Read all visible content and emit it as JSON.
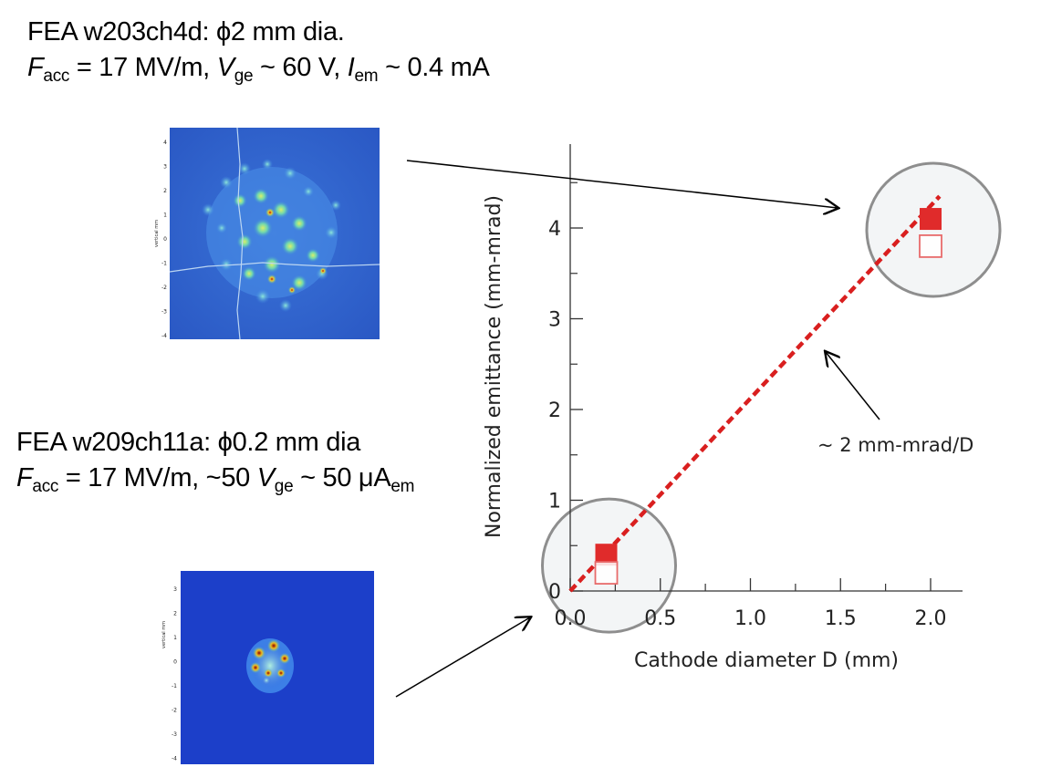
{
  "captions": {
    "top": {
      "line1": "FEA w203ch4d: ϕ2 mm dia.",
      "f": "F",
      "f_sub": "acc",
      "f_rest": " = 17 MV/m, ",
      "v": "V",
      "v_sub": "ge",
      "v_rest": " ~ 60 V, ",
      "i": "I",
      "i_sub": "em",
      "i_rest": " ~ 0.4 mA"
    },
    "bottom": {
      "line1": "FEA w209ch11a: ϕ0.2 mm dia",
      "f": "F",
      "f_sub": "acc",
      "f_rest": " = 17 MV/m, ~50 ",
      "v": "V",
      "v_sub": "ge",
      "v_rest": " ~ 50 μA",
      "a_sub": "em"
    }
  },
  "images": {
    "top": {
      "ylabel": "vertical mm",
      "ticks": [
        "4",
        "3",
        "2",
        "1",
        "0",
        "-1",
        "-2",
        "-3",
        "-4"
      ]
    },
    "bottom": {
      "ylabel": "vertical mm",
      "ticks": [
        "3",
        "2",
        "1",
        "0",
        "-1",
        "-2",
        "-3",
        "-4"
      ]
    }
  },
  "annotation": "~ 2 mm-mrad/D",
  "chart_data": {
    "type": "scatter",
    "xlabel": "Cathode diameter D (mm)",
    "ylabel": "Normalized emittance (mm-mrad)",
    "xlim": [
      0,
      2.2
    ],
    "ylim": [
      0,
      4.9
    ],
    "xticks": [
      0.0,
      0.5,
      1.0,
      1.5,
      2.0
    ],
    "xtick_labels": [
      "0.0",
      "0.5",
      "1.0",
      "1.5",
      "2.0"
    ],
    "yticks": [
      0,
      1,
      2,
      3,
      4
    ],
    "ytick_labels": [
      "0",
      "1",
      "2",
      "3",
      "4"
    ],
    "series": [
      {
        "marker": "filled-square",
        "color": "#e02b2b",
        "x": [
          0.2,
          2.0
        ],
        "y": [
          0.4,
          4.1
        ]
      },
      {
        "marker": "open-square",
        "color": "#e86b6b",
        "x": [
          0.2,
          2.0
        ],
        "y": [
          0.2,
          3.8
        ]
      }
    ],
    "fit_line": {
      "style": "dashed",
      "color": "#d91f1f",
      "x": [
        0,
        2.05
      ],
      "y": [
        0,
        4.35
      ]
    },
    "highlight_circles": [
      {
        "x": 0.2,
        "y": 0.3
      },
      {
        "x": 2.0,
        "y": 4.0
      }
    ],
    "grid": false
  }
}
